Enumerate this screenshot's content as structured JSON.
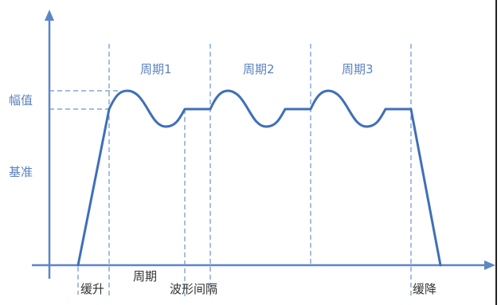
{
  "y_labels": {
    "amplitude": "幅值",
    "baseline": "基准"
  },
  "period_labels": [
    "周期1",
    "周期2",
    "周期3"
  ],
  "bottom_labels": {
    "ramp_up": "缓升",
    "period": "周期",
    "waveform_interval": "波形间隔",
    "ramp_down": "缓降"
  },
  "colors": {
    "axis": "#5b86c8",
    "waveform": "#3f6fb8",
    "guide": "#6a93d0",
    "label": "#5b82c2"
  }
}
